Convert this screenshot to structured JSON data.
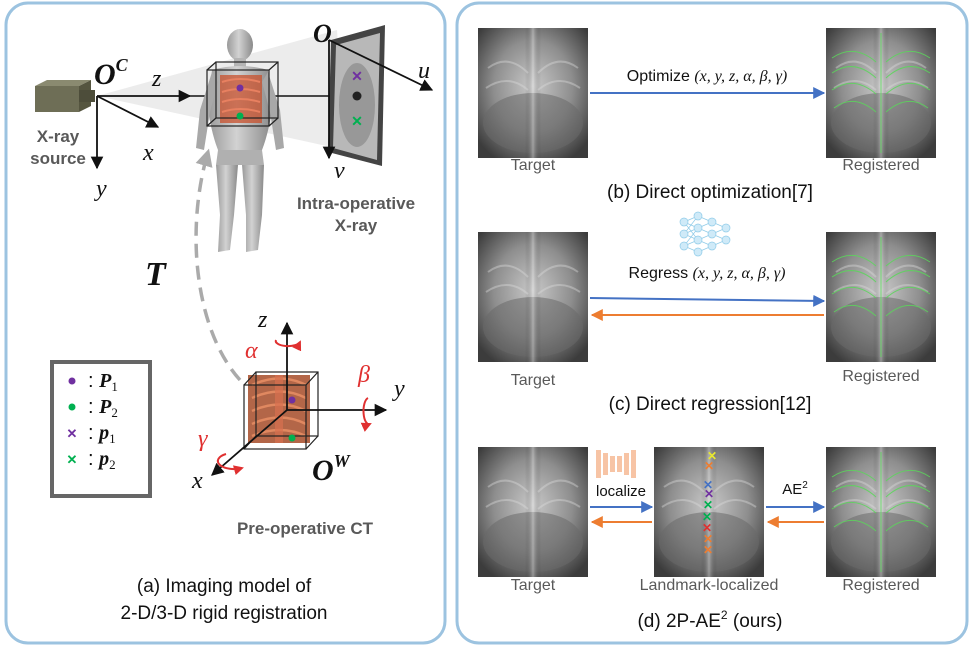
{
  "colors": {
    "panel_border": "#9cc3e0",
    "blue_arrow": "#4472c4",
    "orange_arrow": "#ed7d31",
    "rotation": "#e03030",
    "purple": "#7030a0",
    "green": "#00b050",
    "gray_text": "#595959"
  },
  "left": {
    "camera_origin": "O",
    "camera_sup": "C",
    "axis_z": "z",
    "axis_x": "x",
    "axis_y": "y",
    "source_line1": "X-ray",
    "source_line2": "source",
    "detector_origin": "O",
    "axis_u": "u",
    "axis_v": "v",
    "xray_line1": "Intra-operative",
    "xray_line2": "X-ray",
    "transform": "T",
    "world_origin": "O",
    "world_sup": "W",
    "world_z": "z",
    "world_y": "y",
    "world_x": "x",
    "alpha": "α",
    "beta": "β",
    "gamma": "γ",
    "ct_label": "Pre-operative CT",
    "legend": [
      {
        "marker": "dot",
        "color": "#7030a0",
        "sep": ":",
        "sym": "P",
        "sub": "1"
      },
      {
        "marker": "dot",
        "color": "#00b050",
        "sep": ":",
        "sym": "P",
        "sub": "2"
      },
      {
        "marker": "cross",
        "color": "#7030a0",
        "sep": ":",
        "sym": "p",
        "sub": "1"
      },
      {
        "marker": "cross",
        "color": "#00b050",
        "sep": ":",
        "sym": "p",
        "sub": "2"
      }
    ],
    "caption_line1": "(a) Imaging model of",
    "caption_line2": "2-D/3-D rigid registration"
  },
  "right": {
    "b": {
      "target": "Target",
      "registered": "Registered",
      "arrow_word": "Optimize",
      "params": "(x, y, z, α, β, γ)",
      "caption": "(b) Direct optimization[7]"
    },
    "c": {
      "target": "Target",
      "registered": "Registered",
      "arrow_word": "Regress",
      "params": "(x, y, z, α, β, γ)",
      "caption": "(c) Direct regression[12]"
    },
    "d": {
      "target": "Target",
      "middle": "Landmark-localized",
      "registered": "Registered",
      "localize": "localize",
      "ae": "AE",
      "ae_sup": "2",
      "caption_main": "(d) 2P-AE",
      "caption_sup": "2",
      "caption_tail": " (ours)"
    }
  }
}
